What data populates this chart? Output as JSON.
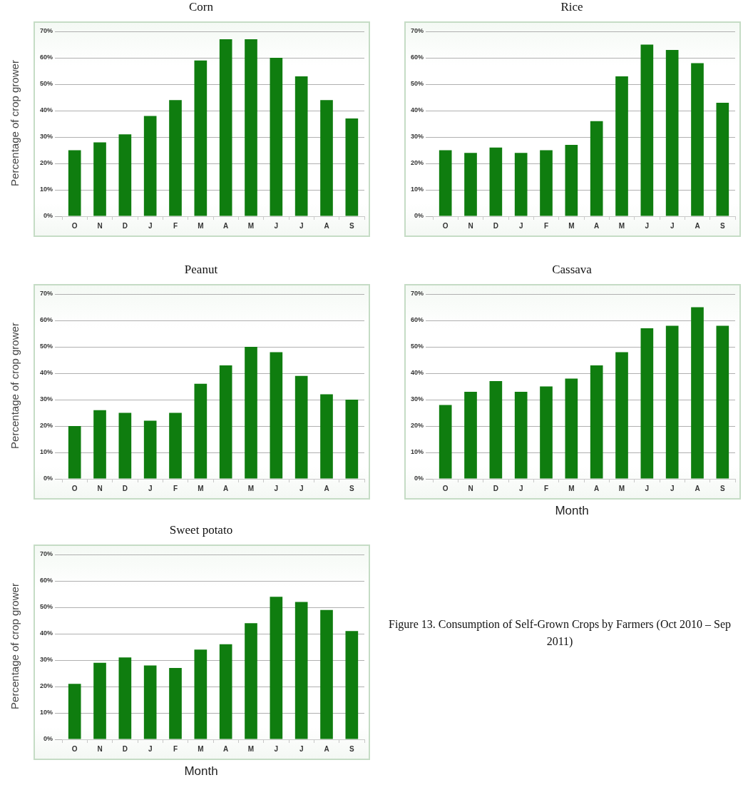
{
  "chart_data": [
    {
      "type": "bar",
      "title": "Corn",
      "ylabel": "Percentage of crop grower",
      "categories": [
        "O",
        "N",
        "D",
        "J",
        "F",
        "M",
        "A",
        "M",
        "J",
        "J",
        "A",
        "S"
      ],
      "values": [
        25,
        28,
        31,
        38,
        44,
        59,
        67,
        67,
        60,
        53,
        44,
        37
      ],
      "color": "#0f7d0f",
      "ylim": [
        0,
        70
      ],
      "yticks": [
        {
          "value": 0,
          "label": "0%"
        },
        {
          "value": 10,
          "label": "10%"
        },
        {
          "value": 20,
          "label": "20%"
        },
        {
          "value": 30,
          "label": "30%"
        },
        {
          "value": 40,
          "label": "40%"
        },
        {
          "value": 50,
          "label": "50%"
        },
        {
          "value": 60,
          "label": "60%"
        },
        {
          "value": 70,
          "label": "70%"
        }
      ],
      "grid": "y"
    },
    {
      "type": "bar",
      "title": "Rice",
      "categories": [
        "O",
        "N",
        "D",
        "J",
        "F",
        "M",
        "A",
        "M",
        "J",
        "J",
        "A",
        "S"
      ],
      "values": [
        25,
        24,
        26,
        24,
        25,
        27,
        36,
        53,
        65,
        63,
        58,
        43
      ],
      "color": "#0f7d0f",
      "ylim": [
        0,
        70
      ],
      "yticks": [
        {
          "value": 0,
          "label": "0%"
        },
        {
          "value": 10,
          "label": "10%"
        },
        {
          "value": 20,
          "label": "20%"
        },
        {
          "value": 30,
          "label": "30%"
        },
        {
          "value": 40,
          "label": "40%"
        },
        {
          "value": 50,
          "label": "50%"
        },
        {
          "value": 60,
          "label": "60%"
        },
        {
          "value": 70,
          "label": "70%"
        }
      ],
      "grid": "y"
    },
    {
      "type": "bar",
      "title": "Peanut",
      "ylabel": "Percentage of crop grower",
      "categories": [
        "O",
        "N",
        "D",
        "J",
        "F",
        "M",
        "A",
        "M",
        "J",
        "J",
        "A",
        "S"
      ],
      "values": [
        20,
        26,
        25,
        22,
        25,
        36,
        43,
        50,
        48,
        39,
        32,
        30
      ],
      "color": "#0f7d0f",
      "ylim": [
        0,
        70
      ],
      "yticks": [
        {
          "value": 0,
          "label": "0%"
        },
        {
          "value": 10,
          "label": "10%"
        },
        {
          "value": 20,
          "label": "20%"
        },
        {
          "value": 30,
          "label": "30%"
        },
        {
          "value": 40,
          "label": "40%"
        },
        {
          "value": 50,
          "label": "50%"
        },
        {
          "value": 60,
          "label": "60%"
        },
        {
          "value": 70,
          "label": "70%"
        }
      ],
      "grid": "y"
    },
    {
      "type": "bar",
      "title": "Cassava",
      "xlabel": "Month",
      "categories": [
        "O",
        "N",
        "D",
        "J",
        "F",
        "M",
        "A",
        "M",
        "J",
        "J",
        "A",
        "S"
      ],
      "values": [
        28,
        33,
        37,
        33,
        35,
        38,
        43,
        48,
        57,
        58,
        65,
        58
      ],
      "color": "#0f7d0f",
      "ylim": [
        0,
        70
      ],
      "yticks": [
        {
          "value": 0,
          "label": "0%"
        },
        {
          "value": 10,
          "label": "10%"
        },
        {
          "value": 20,
          "label": "20%"
        },
        {
          "value": 30,
          "label": "30%"
        },
        {
          "value": 40,
          "label": "40%"
        },
        {
          "value": 50,
          "label": "50%"
        },
        {
          "value": 60,
          "label": "60%"
        },
        {
          "value": 70,
          "label": "70%"
        }
      ],
      "grid": "y"
    },
    {
      "type": "bar",
      "title": "Sweet potato",
      "xlabel": "Month",
      "ylabel": "Percentage of crop grower",
      "categories": [
        "O",
        "N",
        "D",
        "J",
        "F",
        "M",
        "A",
        "M",
        "J",
        "J",
        "A",
        "S"
      ],
      "values": [
        21,
        29,
        31,
        28,
        27,
        34,
        36,
        44,
        54,
        52,
        49,
        41
      ],
      "color": "#0f7d0f",
      "ylim": [
        0,
        70
      ],
      "yticks": [
        {
          "value": 0,
          "label": "0%"
        },
        {
          "value": 10,
          "label": "10%"
        },
        {
          "value": 20,
          "label": "20%"
        },
        {
          "value": 30,
          "label": "30%"
        },
        {
          "value": 40,
          "label": "40%"
        },
        {
          "value": 50,
          "label": "50%"
        },
        {
          "value": 60,
          "label": "60%"
        },
        {
          "value": 70,
          "label": "70%"
        }
      ],
      "grid": "y"
    },
    {
      "type": "other",
      "annotations": [
        "Figure 13. Consumption of Self-Grown Crops by Farmers (Oct 2010 – Sep 2011)"
      ]
    }
  ]
}
